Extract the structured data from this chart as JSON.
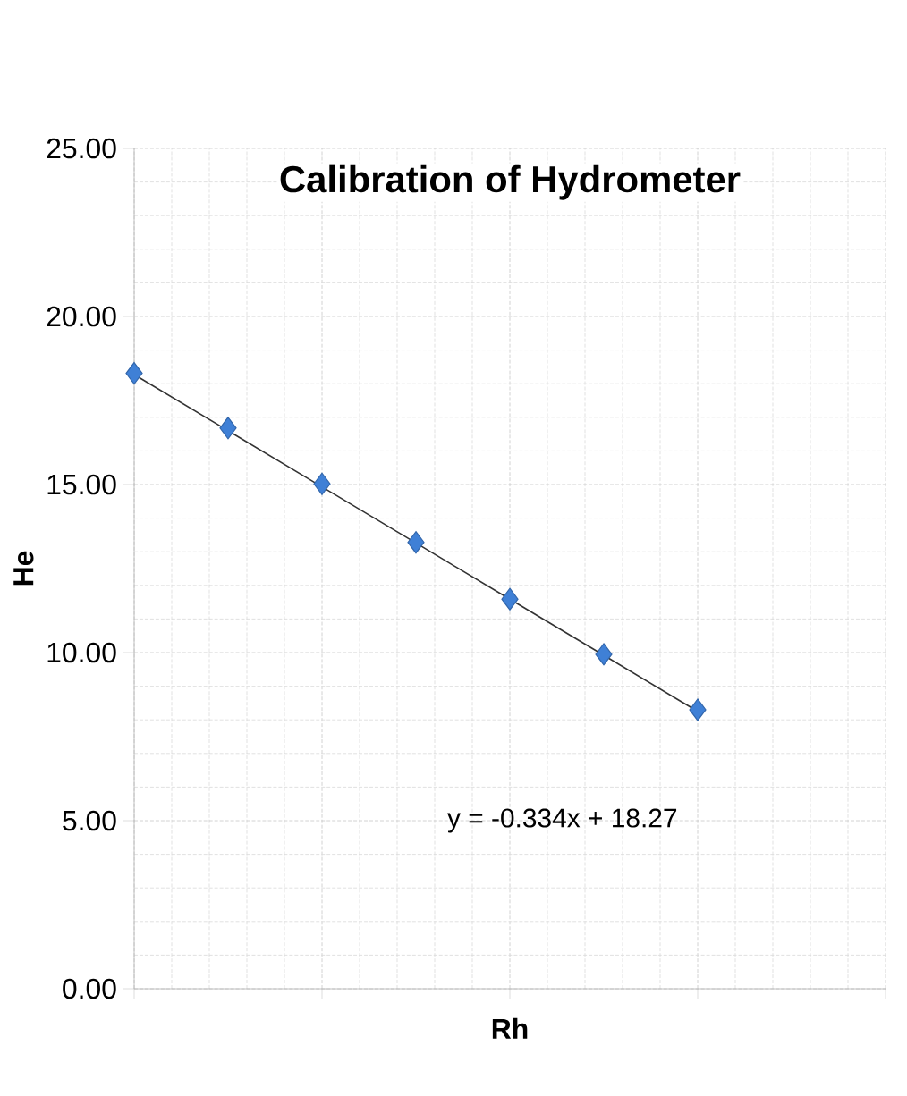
{
  "chart_data": {
    "type": "scatter",
    "title": "Calibration of Hydrometer",
    "xlabel": "Rh",
    "ylabel": "He",
    "annotations": [
      "y = -0.334x + 18.27"
    ],
    "categories": [
      null,
      null,
      null,
      null,
      null,
      null,
      null,
      null,
      null
    ],
    "series": [
      {
        "color": "#3f80d6",
        "marker": "diamond",
        "values": [
          18.31,
          16.68,
          15.02,
          13.28,
          11.59,
          9.95,
          8.3,
          null,
          null
        ]
      },
      {
        "type": "line",
        "color": "#333333",
        "line_style": "solid",
        "values": [
          18.27,
          16.6,
          14.93,
          13.26,
          11.59,
          9.92,
          8.25,
          null,
          null
        ]
      }
    ],
    "ylim": [
      0,
      25
    ],
    "yticks": [
      {
        "value": 0,
        "label": "0.00"
      },
      {
        "value": 5,
        "label": "5.00"
      },
      {
        "value": 10,
        "label": "10.00"
      },
      {
        "value": 15,
        "label": "15.00"
      },
      {
        "value": 20,
        "label": "20.00"
      },
      {
        "value": 25,
        "label": "25.00"
      }
    ],
    "grid": true
  }
}
